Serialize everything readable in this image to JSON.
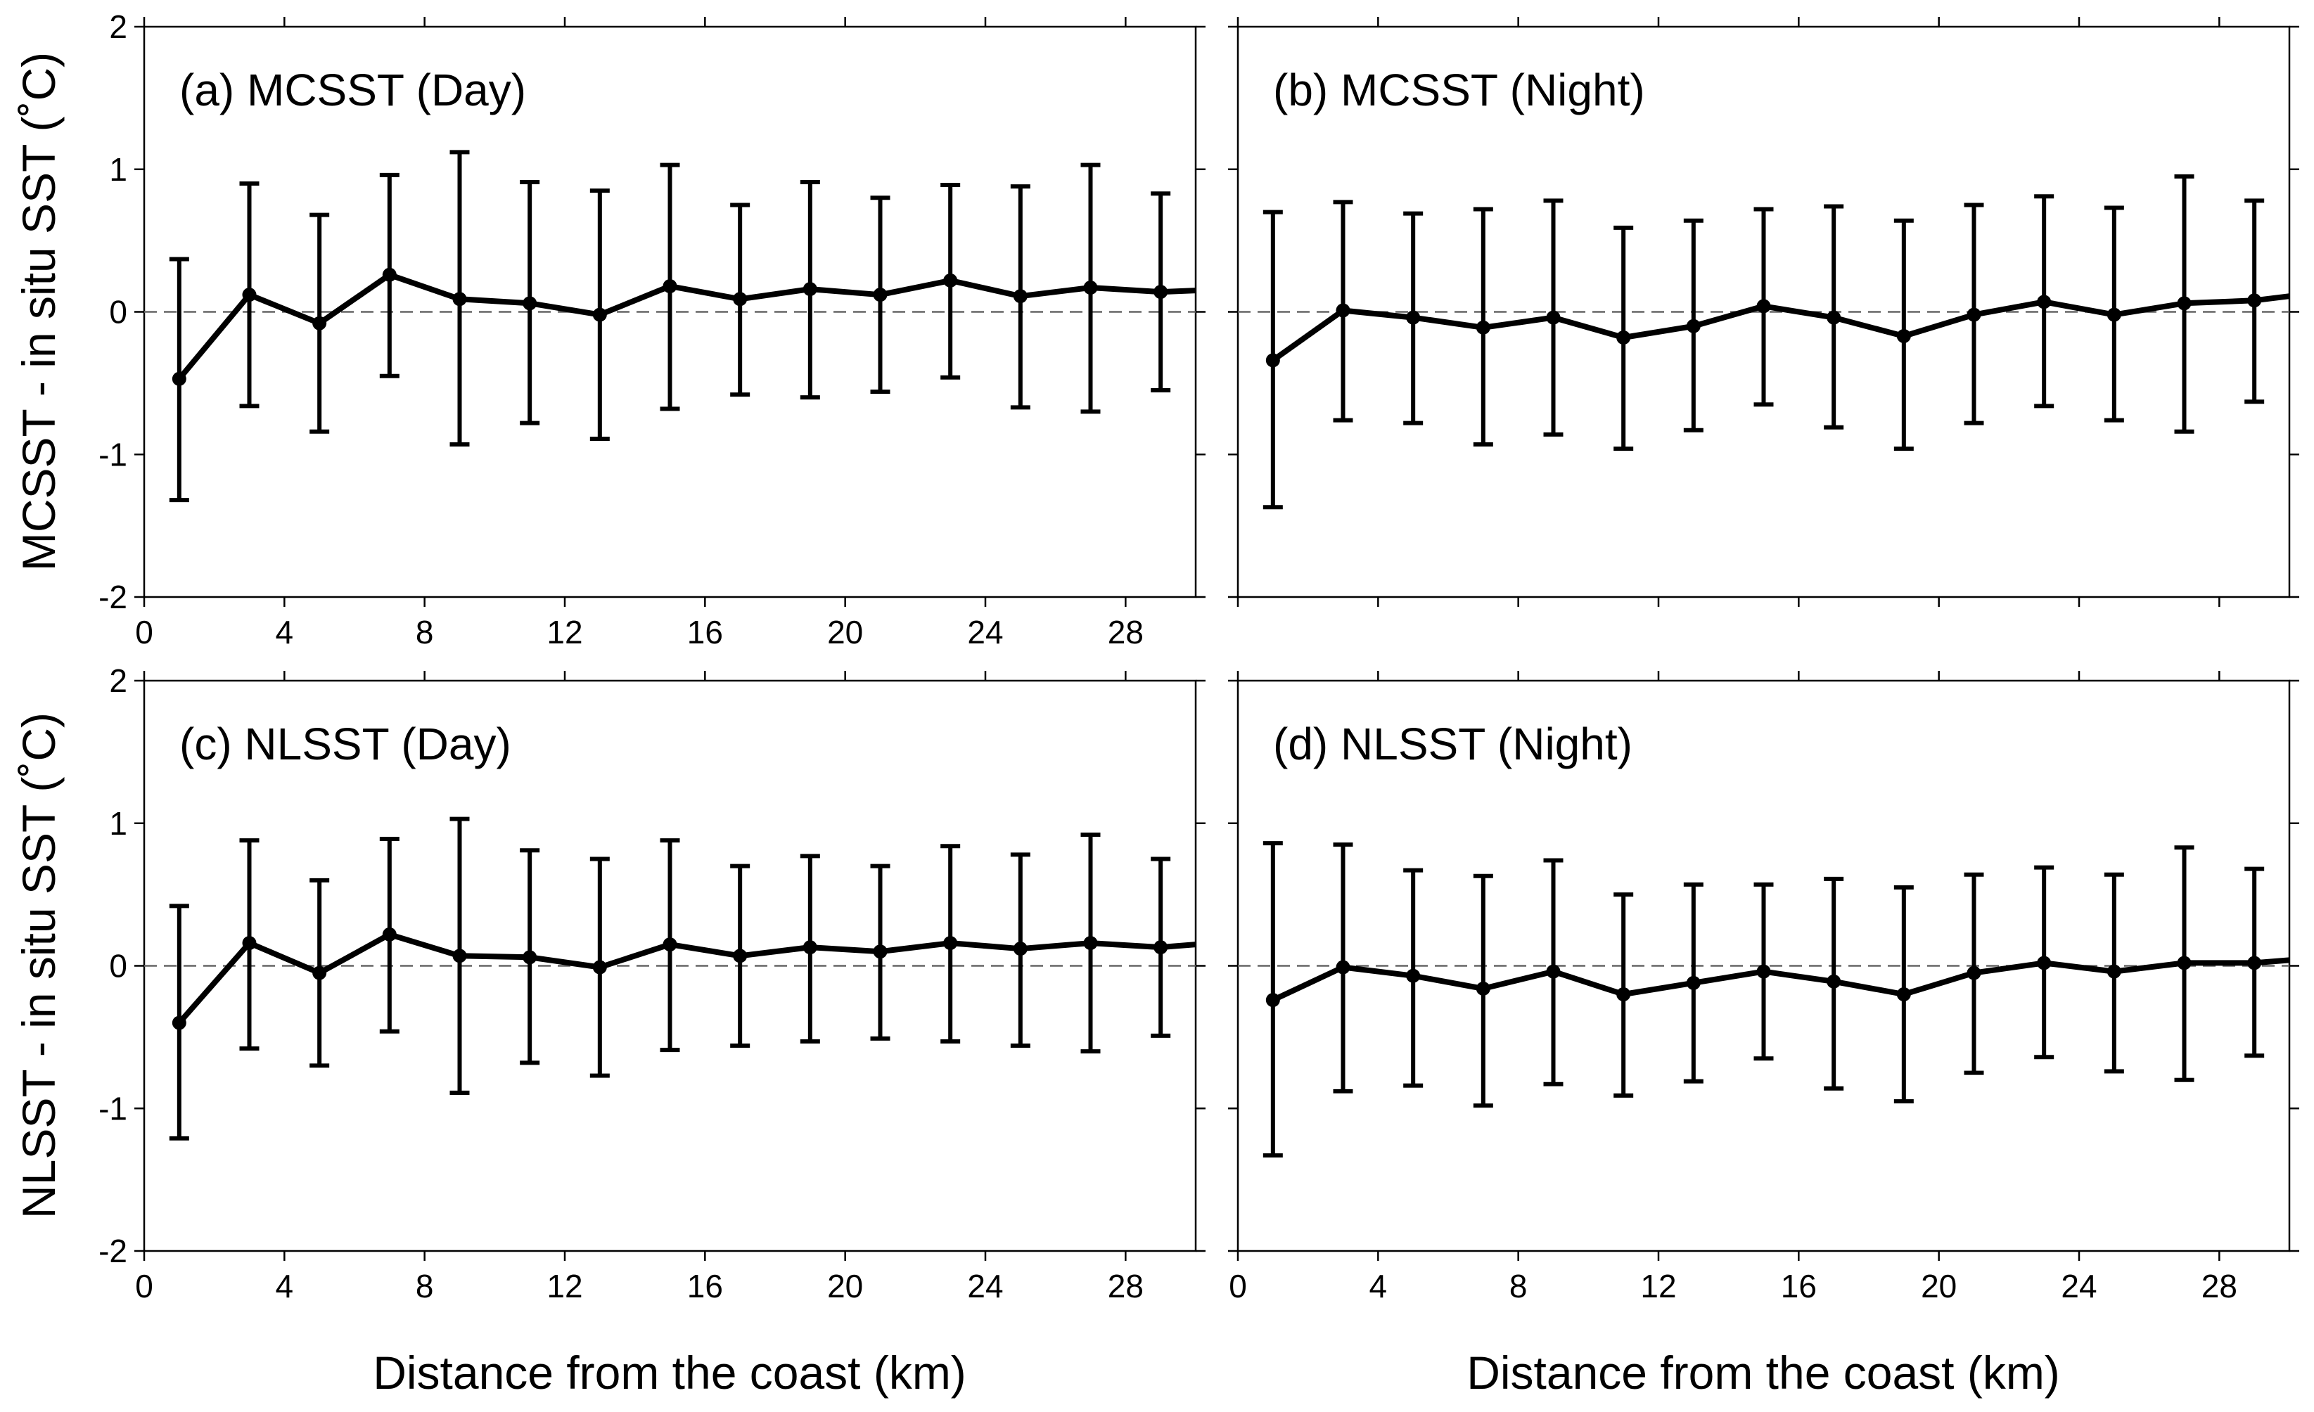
{
  "colors": {
    "line": "#000000",
    "zero_line": "#666666",
    "background": "#ffffff"
  },
  "chart_data": [
    {
      "type": "line",
      "panel_label": "(a) MCSST (Day)",
      "ylabel": "MCSST - in situ SST (˚C)",
      "xlabel": "",
      "xlim": [
        0,
        30
      ],
      "ylim": [
        -2,
        2
      ],
      "x_ticks": [
        "0",
        "4",
        "8",
        "12",
        "16",
        "20",
        "24",
        "28"
      ],
      "y_ticks": [
        "-2",
        "-1",
        "0",
        "1",
        "2"
      ],
      "x": [
        1,
        3,
        5,
        7,
        9,
        11,
        13,
        15,
        17,
        19,
        21,
        23,
        25,
        27,
        29,
        30
      ],
      "mean": [
        -0.47,
        0.12,
        -0.08,
        0.26,
        0.09,
        0.06,
        -0.02,
        0.18,
        0.09,
        0.16,
        0.12,
        0.22,
        0.11,
        0.17,
        0.14,
        0.15
      ],
      "upper": [
        0.37,
        0.9,
        0.68,
        0.96,
        1.12,
        0.91,
        0.85,
        1.03,
        0.75,
        0.91,
        0.8,
        0.89,
        0.88,
        1.03,
        0.83,
        null
      ],
      "lower": [
        -1.32,
        -0.66,
        -0.84,
        -0.45,
        -0.93,
        -0.78,
        -0.89,
        -0.68,
        -0.58,
        -0.6,
        -0.56,
        -0.46,
        -0.67,
        -0.7,
        -0.55,
        null
      ]
    },
    {
      "type": "line",
      "panel_label": "(b) MCSST (Night)",
      "ylabel": "",
      "xlabel": "",
      "xlim": [
        0,
        30
      ],
      "ylim": [
        -2,
        2
      ],
      "x_ticks": [],
      "y_ticks": [],
      "x": [
        1,
        3,
        5,
        7,
        9,
        11,
        13,
        15,
        17,
        19,
        21,
        23,
        25,
        27,
        29,
        30
      ],
      "mean": [
        -0.34,
        0.01,
        -0.04,
        -0.11,
        -0.04,
        -0.18,
        -0.1,
        0.04,
        -0.04,
        -0.17,
        -0.02,
        0.07,
        -0.02,
        0.06,
        0.08,
        0.11
      ],
      "upper": [
        0.7,
        0.77,
        0.69,
        0.72,
        0.78,
        0.59,
        0.64,
        0.72,
        0.74,
        0.64,
        0.75,
        0.81,
        0.73,
        0.95,
        0.78,
        null
      ],
      "lower": [
        -1.37,
        -0.76,
        -0.78,
        -0.93,
        -0.86,
        -0.96,
        -0.83,
        -0.65,
        -0.81,
        -0.96,
        -0.78,
        -0.66,
        -0.76,
        -0.84,
        -0.63,
        null
      ]
    },
    {
      "type": "line",
      "panel_label": "(c) NLSST (Day)",
      "ylabel": "NLSST - in situ SST (˚C)",
      "xlabel": "Distance from the coast (km)",
      "xlim": [
        0,
        30
      ],
      "ylim": [
        -2,
        2
      ],
      "x_ticks": [
        "0",
        "4",
        "8",
        "12",
        "16",
        "20",
        "24",
        "28"
      ],
      "y_ticks": [
        "-2",
        "-1",
        "0",
        "1",
        "2"
      ],
      "x": [
        1,
        3,
        5,
        7,
        9,
        11,
        13,
        15,
        17,
        19,
        21,
        23,
        25,
        27,
        29,
        30
      ],
      "mean": [
        -0.4,
        0.16,
        -0.05,
        0.22,
        0.07,
        0.06,
        -0.01,
        0.15,
        0.07,
        0.13,
        0.1,
        0.16,
        0.12,
        0.16,
        0.13,
        0.15
      ],
      "upper": [
        0.42,
        0.88,
        0.6,
        0.89,
        1.03,
        0.81,
        0.75,
        0.88,
        0.7,
        0.77,
        0.7,
        0.84,
        0.78,
        0.92,
        0.75,
        null
      ],
      "lower": [
        -1.21,
        -0.58,
        -0.7,
        -0.46,
        -0.89,
        -0.68,
        -0.77,
        -0.59,
        -0.56,
        -0.53,
        -0.51,
        -0.53,
        -0.56,
        -0.6,
        -0.49,
        null
      ]
    },
    {
      "type": "line",
      "panel_label": "(d) NLSST (Night)",
      "ylabel": "",
      "xlabel": "Distance from the coast (km)",
      "xlim": [
        0,
        30
      ],
      "ylim": [
        -2,
        2
      ],
      "x_ticks": [
        "0",
        "4",
        "8",
        "12",
        "16",
        "20",
        "24",
        "28"
      ],
      "y_ticks": [],
      "x": [
        1,
        3,
        5,
        7,
        9,
        11,
        13,
        15,
        17,
        19,
        21,
        23,
        25,
        27,
        29,
        30
      ],
      "mean": [
        -0.24,
        -0.01,
        -0.07,
        -0.16,
        -0.04,
        -0.2,
        -0.12,
        -0.04,
        -0.11,
        -0.2,
        -0.05,
        0.02,
        -0.04,
        0.02,
        0.02,
        0.04
      ],
      "upper": [
        0.86,
        0.85,
        0.67,
        0.63,
        0.74,
        0.5,
        0.57,
        0.57,
        0.61,
        0.55,
        0.64,
        0.69,
        0.64,
        0.83,
        0.68,
        null
      ],
      "lower": [
        -1.33,
        -0.88,
        -0.84,
        -0.98,
        -0.83,
        -0.91,
        -0.81,
        -0.65,
        -0.86,
        -0.95,
        -0.75,
        -0.64,
        -0.74,
        -0.8,
        -0.63,
        null
      ]
    }
  ]
}
